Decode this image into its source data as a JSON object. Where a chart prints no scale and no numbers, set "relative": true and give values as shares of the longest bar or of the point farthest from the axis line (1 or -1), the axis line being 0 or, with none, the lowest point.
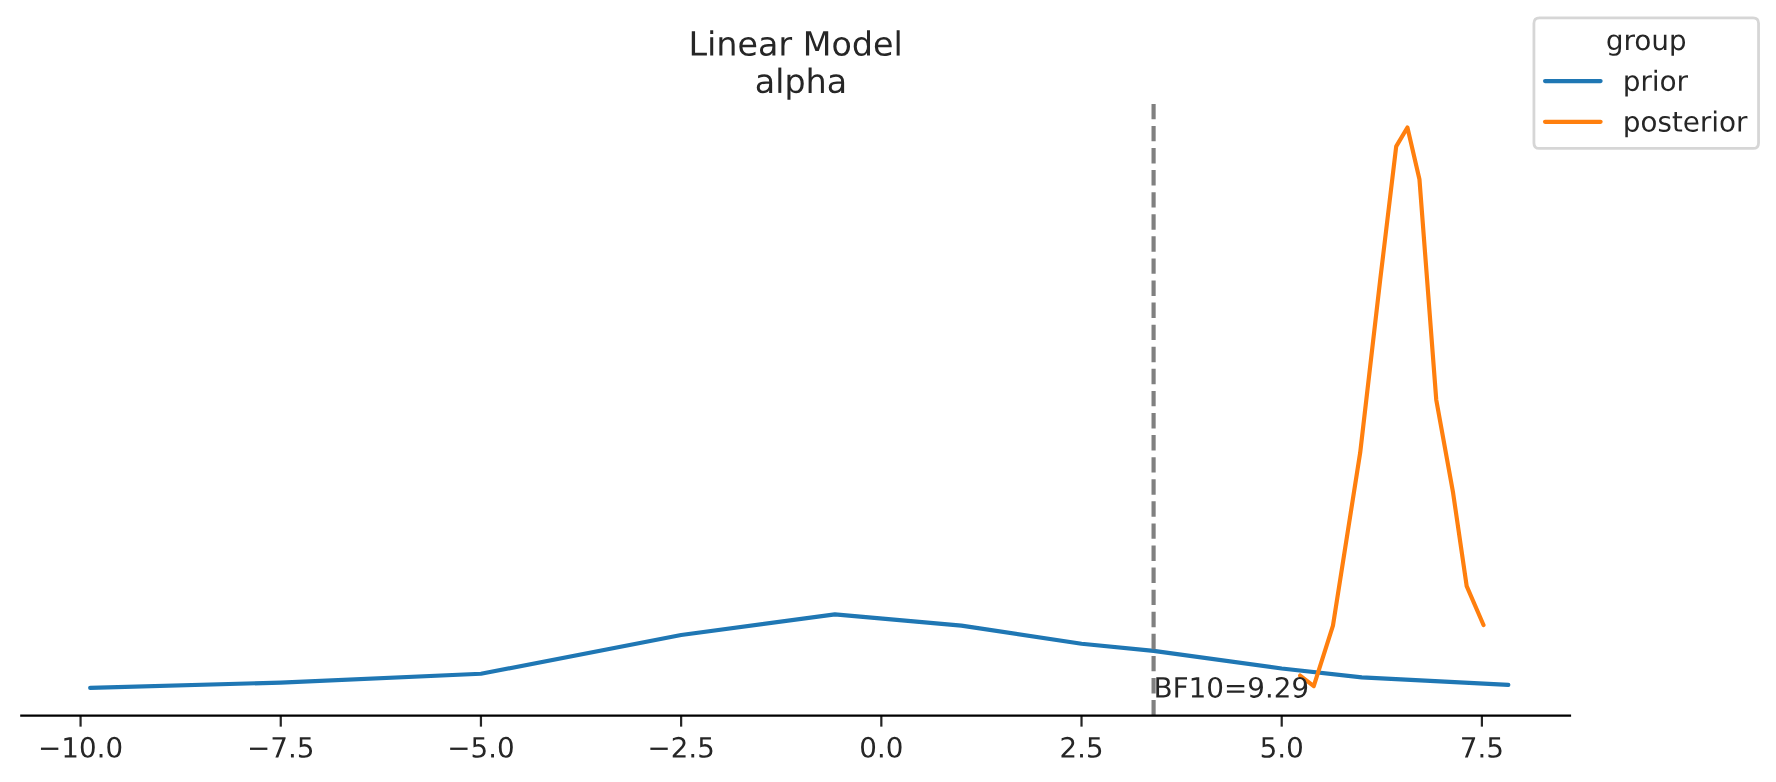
{
  "chart_data": {
    "type": "line",
    "title": "Linear Model\n alpha",
    "relative": true,
    "legend": "top right",
    "legend_title": "group",
    "grid": false,
    "xlim": [
      -10.74,
      8.6
    ],
    "xticks": [
      {
        "value": -10,
        "label": "−10.0"
      },
      {
        "value": -7.5,
        "label": "−7.5"
      },
      {
        "value": -5,
        "label": "−5.0"
      },
      {
        "value": -2.5,
        "label": "−2.5"
      },
      {
        "value": 0,
        "label": "0.0"
      },
      {
        "value": 2.5,
        "label": "2.5"
      },
      {
        "value": 5,
        "label": "5.0"
      },
      {
        "value": 7.5,
        "label": "7.5"
      }
    ],
    "series": [
      {
        "name": "prior",
        "color": "#1f77b4",
        "x": [
          -9.88,
          -7.5,
          -5.0,
          -2.5,
          -0.58,
          1.0,
          2.5,
          3.4,
          5.0,
          6.0,
          7.83
        ],
        "values": [
          0.047,
          0.056,
          0.071,
          0.137,
          0.172,
          0.153,
          0.122,
          0.11,
          0.08,
          0.065,
          0.052
        ]
      },
      {
        "name": "posterior",
        "color": "#ff7f0e",
        "x": [
          5.23,
          5.4,
          5.64,
          5.98,
          6.23,
          6.43,
          6.57,
          6.72,
          6.93,
          7.14,
          7.31,
          7.52
        ],
        "values": [
          0.068,
          0.05,
          0.153,
          0.447,
          0.741,
          0.968,
          1.0,
          0.912,
          0.537,
          0.379,
          0.22,
          0.154
        ]
      }
    ],
    "ref_lines": [
      {
        "axis": "x",
        "value": 3.4,
        "color": "#808080",
        "line_style": "dashed"
      }
    ],
    "annotations": [
      "BF10=9.29"
    ]
  }
}
